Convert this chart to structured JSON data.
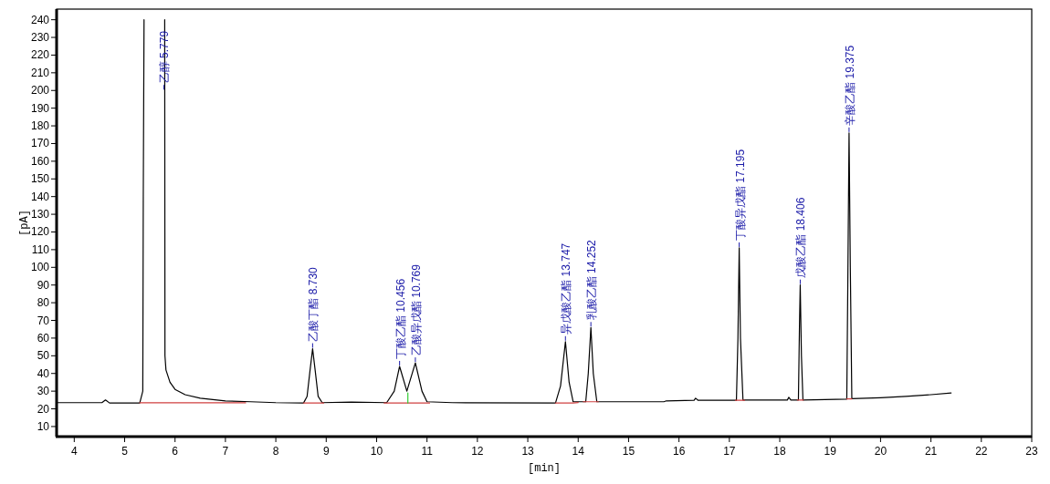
{
  "chart_data": {
    "type": "line",
    "xlabel": "[min]",
    "ylabel": "[pA]",
    "xlim": [
      3.65,
      23
    ],
    "ylim": [
      4.3,
      246
    ],
    "xticks": [
      4,
      5,
      6,
      7,
      8,
      9,
      10,
      11,
      12,
      13,
      14,
      15,
      16,
      17,
      18,
      19,
      20,
      21,
      22,
      23
    ],
    "yticks": [
      10,
      20,
      30,
      40,
      50,
      60,
      70,
      80,
      90,
      100,
      110,
      120,
      130,
      140,
      150,
      160,
      170,
      180,
      190,
      200,
      210,
      220,
      230,
      240
    ],
    "series": [
      {
        "color": "#000000",
        "x": [
          3.65,
          4.55,
          4.62,
          4.7,
          5.3,
          5.36,
          5.37,
          5.385,
          null,
          5.795,
          5.8,
          5.82,
          5.9,
          6.0,
          6.2,
          6.5,
          7.0,
          7.5,
          8.0,
          8.55,
          8.62,
          8.68,
          8.73,
          8.78,
          8.84,
          8.92,
          9.5,
          10.2,
          10.35,
          10.456,
          10.6,
          10.769,
          10.9,
          11.0,
          11.5,
          13.55,
          13.65,
          13.747,
          13.82,
          13.9,
          14.15,
          14.2,
          14.252,
          14.3,
          14.37,
          15.7,
          15.75,
          16.3,
          16.33,
          16.38,
          17.14,
          17.17,
          17.195,
          17.22,
          17.27,
          18.15,
          18.18,
          18.22,
          18.37,
          18.39,
          18.406,
          18.43,
          18.46,
          19.33,
          19.35,
          19.375,
          19.4,
          19.43,
          20,
          20.5,
          21,
          21.4
        ],
        "values": [
          23.5,
          23.5,
          25,
          23.3,
          23.3,
          30,
          140,
          240,
          null,
          240,
          50,
          42,
          35,
          31,
          28,
          26,
          24.5,
          24,
          23.5,
          23.3,
          27,
          42,
          54,
          42,
          27,
          23.5,
          23.8,
          23.5,
          30,
          44,
          30,
          46,
          30,
          24,
          23.5,
          23.3,
          33,
          58,
          35,
          24,
          24,
          40,
          66,
          40,
          24,
          24,
          24.5,
          24.8,
          26,
          24.8,
          24.8,
          60,
          111,
          60,
          25,
          25,
          26.5,
          25,
          25,
          65,
          90,
          50,
          25,
          25.5,
          90,
          176,
          100,
          25.8,
          26.3,
          27,
          28,
          29
        ]
      },
      {
        "color": "#d04040",
        "x": [
          5.3,
          7.4,
          null,
          8.55,
          8.95,
          null,
          10.15,
          11.05,
          null,
          13.55,
          13.9,
          14.0,
          null,
          14.1,
          14.4,
          null,
          17.12,
          17.3,
          null,
          18.35,
          18.47,
          null,
          19.33,
          19.43
        ],
        "values": [
          23.4,
          23.4,
          null,
          23.3,
          23.3,
          null,
          23.3,
          23.3,
          null,
          23.3,
          23.3,
          23.6,
          null,
          24,
          24,
          null,
          24.8,
          24.8,
          null,
          25,
          25,
          null,
          25.6,
          25.6
        ]
      },
      {
        "color": "#33cc33",
        "x": [
          10.62,
          10.62
        ],
        "values": [
          23.3,
          29
        ]
      }
    ],
    "annotations": [
      {
        "text": "乙醇 5.779",
        "x": 5.779,
        "y": 200
      },
      {
        "text": "乙酸丁酯 8.730",
        "x": 8.73,
        "y": 54
      },
      {
        "text": "丁酸乙酯 10.456",
        "x": 10.456,
        "y": 44
      },
      {
        "text": "乙酸异戊酯 10.769",
        "x": 10.769,
        "y": 46
      },
      {
        "text": "异戊酸乙酯 13.747",
        "x": 13.747,
        "y": 58
      },
      {
        "text": "乳酸乙酯 14.252",
        "x": 14.252,
        "y": 66
      },
      {
        "text": "丁酸异戊酯 17.195",
        "x": 17.195,
        "y": 111
      },
      {
        "text": "戊酸乙酯 18.406",
        "x": 18.406,
        "y": 90
      },
      {
        "text": "辛酸乙酯 19.375",
        "x": 19.375,
        "y": 176
      }
    ]
  }
}
